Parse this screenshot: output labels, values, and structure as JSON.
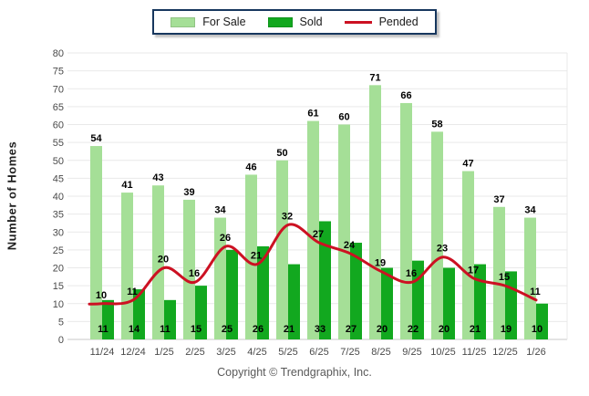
{
  "legend": {
    "for_sale_label": "For Sale",
    "sold_label": "Sold",
    "pended_label": "Pended"
  },
  "colors": {
    "for_sale": "#A5DF97",
    "sold": "#12A81F",
    "pended": "#CC1122",
    "legend_border": "#17375E",
    "gridline": "#E9E9E9",
    "axis_line": "#C9C9C9",
    "axis_text": "#4A4A4A",
    "value_text": "#000000"
  },
  "footer": {
    "copyright": "Copyright © Trendgraphix, Inc."
  },
  "chart_data": {
    "type": "bar",
    "title": "",
    "xlabel": "",
    "ylabel": "Number of Homes",
    "ylim": [
      0,
      80
    ],
    "ytick_step": 5,
    "grid": true,
    "legend_position": "top",
    "categories": [
      "11/24",
      "12/24",
      "1/25",
      "2/25",
      "3/25",
      "4/25",
      "5/25",
      "6/25",
      "7/25",
      "8/25",
      "9/25",
      "10/25",
      "11/25",
      "12/25",
      "1/26"
    ],
    "series": [
      {
        "name": "For Sale",
        "type": "bar",
        "color": "#A5DF97",
        "values": [
          54,
          41,
          43,
          39,
          34,
          46,
          50,
          61,
          60,
          71,
          66,
          58,
          47,
          37,
          34
        ]
      },
      {
        "name": "Sold",
        "type": "bar",
        "color": "#12A81F",
        "values": [
          11,
          14,
          11,
          15,
          25,
          26,
          21,
          33,
          27,
          20,
          22,
          20,
          21,
          19,
          10
        ]
      },
      {
        "name": "Pended",
        "type": "line",
        "color": "#CC1122",
        "values": [
          10,
          11,
          20,
          16,
          26,
          21,
          32,
          27,
          24,
          19,
          16,
          23,
          17,
          15,
          11
        ]
      }
    ]
  }
}
